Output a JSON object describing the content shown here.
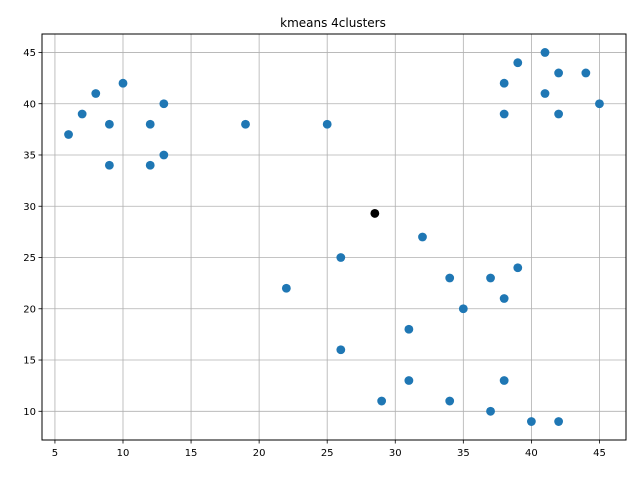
{
  "chart_data": {
    "type": "scatter",
    "title": "kmeans 4clusters",
    "xlabel": "",
    "ylabel": "",
    "xlim": [
      4.05,
      46.95
    ],
    "ylim": [
      7.2,
      46.8
    ],
    "xticks": [
      5,
      10,
      15,
      20,
      25,
      30,
      35,
      40,
      45
    ],
    "yticks": [
      10,
      15,
      20,
      25,
      30,
      35,
      40,
      45
    ],
    "grid": true,
    "series": [
      {
        "color": "#1f77b4",
        "points": [
          [
            41,
            45
          ],
          [
            39,
            44
          ],
          [
            42,
            43
          ],
          [
            44,
            43
          ],
          [
            38,
            42
          ],
          [
            41,
            41
          ],
          [
            45,
            40
          ],
          [
            38,
            39
          ],
          [
            42,
            39
          ],
          [
            10,
            42
          ],
          [
            8,
            41
          ],
          [
            13,
            40
          ],
          [
            7,
            39
          ],
          [
            9,
            38
          ],
          [
            12,
            38
          ],
          [
            19,
            38
          ],
          [
            25,
            38
          ],
          [
            6,
            37
          ],
          [
            13,
            35
          ],
          [
            9,
            34
          ],
          [
            12,
            34
          ],
          [
            32,
            27
          ],
          [
            26,
            25
          ],
          [
            39,
            24
          ],
          [
            34,
            23
          ],
          [
            37,
            23
          ],
          [
            22,
            22
          ],
          [
            38,
            21
          ],
          [
            35,
            20
          ],
          [
            31,
            18
          ],
          [
            26,
            16
          ],
          [
            31,
            13
          ],
          [
            38,
            13
          ],
          [
            29,
            11
          ],
          [
            34,
            11
          ],
          [
            37,
            10
          ],
          [
            40,
            9
          ],
          [
            42,
            9
          ]
        ]
      },
      {
        "color": "#000000",
        "points": [
          [
            28.5,
            29.3
          ]
        ]
      }
    ]
  }
}
